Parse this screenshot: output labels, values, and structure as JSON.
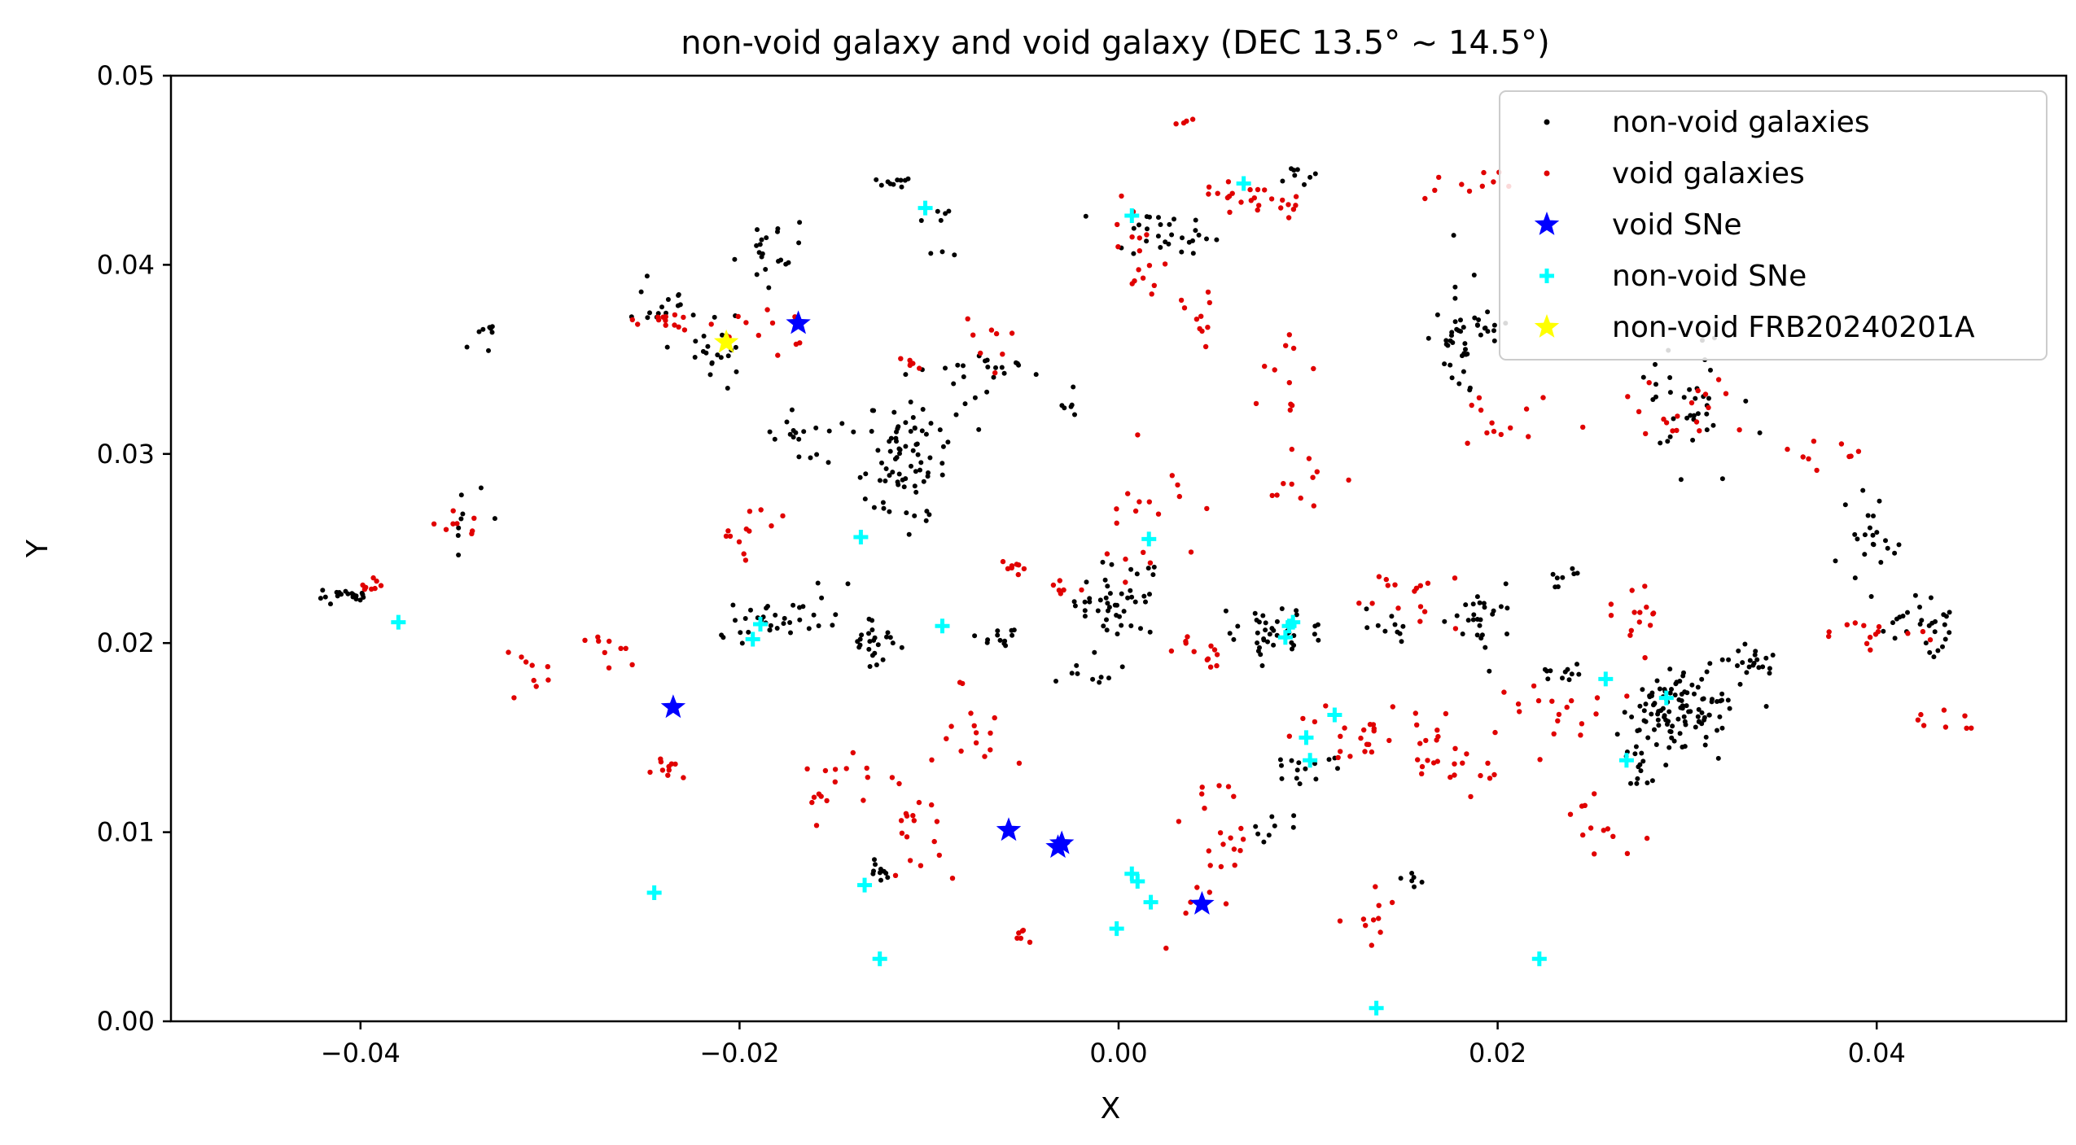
{
  "chart_data": {
    "type": "scatter",
    "title": "non-void galaxy and void galaxy (DEC 13.5° ~ 14.5°)",
    "xlabel": "X",
    "ylabel": "Y",
    "xlim": [
      -0.05,
      0.05
    ],
    "ylim": [
      0.0,
      0.05
    ],
    "xticks": [
      -0.04,
      -0.02,
      0.0,
      0.02,
      0.04
    ],
    "xtick_labels": [
      "−0.04",
      "−0.02",
      "0.00",
      "0.02",
      "0.04"
    ],
    "yticks": [
      0.0,
      0.01,
      0.02,
      0.03,
      0.04,
      0.05
    ],
    "ytick_labels": [
      "0.00",
      "0.01",
      "0.02",
      "0.03",
      "0.04",
      "0.05"
    ],
    "grid": false,
    "legend": {
      "placement": "top-right",
      "entries": [
        {
          "label": "non-void galaxies",
          "series": "nonvoid"
        },
        {
          "label": "void galaxies",
          "series": "void"
        },
        {
          "label": "void SNe",
          "series": "void_sne"
        },
        {
          "label": "non-void SNe",
          "series": "nonvoid_sne"
        },
        {
          "label": "non-void FRB20240201A",
          "series": "frb"
        }
      ]
    },
    "colors": {
      "nonvoid": "#000000",
      "void": "#e00000",
      "void_sne": "#0000ff",
      "nonvoid_sne": "#00ffff",
      "frb": "#ffff00"
    },
    "series": {
      "void_sne": {
        "name": "void SNe",
        "points": [
          [
            -0.0169,
            0.0369
          ],
          [
            -0.0235,
            0.0166
          ],
          [
            -0.0058,
            0.0101
          ],
          [
            -0.0032,
            0.0092
          ],
          [
            -0.003,
            0.0094
          ],
          [
            0.0044,
            0.0062
          ]
        ]
      },
      "nonvoid_sne": {
        "name": "non-void SNe",
        "points": [
          [
            -0.0102,
            0.043
          ],
          [
            0.0007,
            0.0426
          ],
          [
            0.0066,
            0.0443
          ],
          [
            -0.038,
            0.0211
          ],
          [
            -0.0193,
            0.0202
          ],
          [
            -0.0189,
            0.021
          ],
          [
            -0.0136,
            0.0256
          ],
          [
            -0.0093,
            0.0209
          ],
          [
            0.0016,
            0.0255
          ],
          [
            0.0088,
            0.0203
          ],
          [
            0.009,
            0.0209
          ],
          [
            0.0092,
            0.0211
          ],
          [
            0.0099,
            0.015
          ],
          [
            0.0101,
            0.0138
          ],
          [
            0.0114,
            0.0162
          ],
          [
            0.0257,
            0.0181
          ],
          [
            0.0268,
            0.0138
          ],
          [
            0.0289,
            0.0171
          ],
          [
            -0.0245,
            0.0068
          ],
          [
            -0.0134,
            0.0072
          ],
          [
            -0.0126,
            0.0033
          ],
          [
            -0.0001,
            0.0049
          ],
          [
            0.0007,
            0.0078
          ],
          [
            0.001,
            0.0074
          ],
          [
            0.0017,
            0.0063
          ],
          [
            0.0136,
            0.0007
          ],
          [
            0.0222,
            0.0033
          ]
        ]
      },
      "frb": {
        "name": "non-void FRB20240201A",
        "points": [
          [
            -0.0207,
            0.0359
          ]
        ]
      },
      "nonvoid_clusters": [
        [
          -0.041,
          0.0226,
          0.0012,
          0.0006,
          22
        ],
        [
          -0.0345,
          0.0265,
          0.0008,
          0.0018,
          8
        ],
        [
          -0.034,
          0.0365,
          0.0012,
          0.0008,
          8
        ],
        [
          -0.024,
          0.0378,
          0.0012,
          0.0008,
          14
        ],
        [
          -0.0213,
          0.0355,
          0.0012,
          0.0018,
          22
        ],
        [
          -0.0185,
          0.0405,
          0.0015,
          0.0015,
          20
        ],
        [
          -0.0125,
          0.0445,
          0.0018,
          0.0004,
          10
        ],
        [
          -0.0095,
          0.0415,
          0.0008,
          0.0015,
          8
        ],
        [
          -0.0115,
          0.0293,
          0.0022,
          0.003,
          75
        ],
        [
          -0.0165,
          0.0307,
          0.0018,
          0.0012,
          18
        ],
        [
          -0.0175,
          0.0214,
          0.0035,
          0.0012,
          38
        ],
        [
          -0.0125,
          0.02,
          0.0012,
          0.0008,
          22
        ],
        [
          -0.0065,
          0.0205,
          0.0012,
          0.0005,
          12
        ],
        [
          -0.0075,
          0.0345,
          0.0028,
          0.0012,
          22
        ],
        [
          -0.0025,
          0.0325,
          0.0012,
          0.0005,
          6
        ],
        [
          -0.0003,
          0.0225,
          0.0018,
          0.002,
          45
        ],
        [
          0.003,
          0.0415,
          0.0028,
          0.0012,
          28
        ],
        [
          -0.002,
          0.0185,
          0.0018,
          0.0006,
          10
        ],
        [
          0.008,
          0.0205,
          0.0022,
          0.0012,
          40
        ],
        [
          0.01,
          0.0135,
          0.0015,
          0.0006,
          14
        ],
        [
          0.0145,
          0.0208,
          0.0018,
          0.0006,
          10
        ],
        [
          0.0185,
          0.036,
          0.0015,
          0.0025,
          45
        ],
        [
          0.019,
          0.0215,
          0.0015,
          0.0012,
          25
        ],
        [
          0.0235,
          0.0235,
          0.0008,
          0.0005,
          8
        ],
        [
          0.0225,
          0.0185,
          0.0018,
          0.0004,
          12
        ],
        [
          0.0295,
          0.0165,
          0.0022,
          0.0018,
          110
        ],
        [
          0.0335,
          0.019,
          0.0015,
          0.0008,
          22
        ],
        [
          0.0275,
          0.0132,
          0.0008,
          0.0012,
          12
        ],
        [
          0.0305,
          0.0325,
          0.0028,
          0.0028,
          36
        ],
        [
          0.0395,
          0.0255,
          0.0015,
          0.0025,
          22
        ],
        [
          0.0425,
          0.021,
          0.0018,
          0.0012,
          28
        ],
        [
          -0.0125,
          0.008,
          0.0008,
          0.0006,
          10
        ],
        [
          0.0155,
          0.0075,
          0.0008,
          0.0006,
          6
        ],
        [
          0.0075,
          0.0105,
          0.0012,
          0.0008,
          8
        ],
        [
          0.0095,
          0.0445,
          0.0008,
          0.0005,
          8
        ]
      ],
      "void_clusters": [
        [
          -0.0395,
          0.023,
          0.001,
          0.0004,
          8
        ],
        [
          -0.035,
          0.0265,
          0.0012,
          0.0015,
          8
        ],
        [
          -0.031,
          0.0185,
          0.0018,
          0.0012,
          10
        ],
        [
          -0.0265,
          0.0195,
          0.0015,
          0.0008,
          8
        ],
        [
          -0.024,
          0.0135,
          0.0008,
          0.0008,
          10
        ],
        [
          -0.0235,
          0.037,
          0.0015,
          0.0006,
          14
        ],
        [
          -0.0185,
          0.0365,
          0.0018,
          0.0012,
          10
        ],
        [
          -0.0195,
          0.026,
          0.0015,
          0.003,
          12
        ],
        [
          -0.015,
          0.0125,
          0.0015,
          0.0025,
          14
        ],
        [
          -0.011,
          0.0105,
          0.0022,
          0.0025,
          20
        ],
        [
          -0.0075,
          0.0155,
          0.0015,
          0.0025,
          14
        ],
        [
          -0.0065,
          0.0365,
          0.0012,
          0.0015,
          8
        ],
        [
          -0.0055,
          0.024,
          0.0008,
          0.0005,
          8
        ],
        [
          -0.003,
          0.023,
          0.0008,
          0.0005,
          6
        ],
        [
          0.001,
          0.0405,
          0.0015,
          0.0028,
          16
        ],
        [
          0.0045,
          0.0375,
          0.0012,
          0.0015,
          10
        ],
        [
          0.007,
          0.0435,
          0.0028,
          0.0015,
          24
        ],
        [
          0.0015,
          0.0265,
          0.0028,
          0.0025,
          18
        ],
        [
          0.0045,
          0.0195,
          0.0015,
          0.0008,
          12
        ],
        [
          0.005,
          0.0085,
          0.002,
          0.0035,
          24
        ],
        [
          0.0085,
          0.0345,
          0.0012,
          0.0035,
          12
        ],
        [
          0.0135,
          0.0155,
          0.0035,
          0.0015,
          30
        ],
        [
          0.0175,
          0.0135,
          0.0028,
          0.001,
          18
        ],
        [
          0.0155,
          0.0225,
          0.0025,
          0.0015,
          16
        ],
        [
          0.0185,
          0.0445,
          0.0025,
          0.0012,
          10
        ],
        [
          0.0205,
          0.0315,
          0.0022,
          0.0015,
          12
        ],
        [
          0.0225,
          0.0165,
          0.0025,
          0.0015,
          16
        ],
        [
          0.027,
          0.0215,
          0.0028,
          0.0015,
          14
        ],
        [
          0.0255,
          0.0105,
          0.0015,
          0.0015,
          12
        ],
        [
          0.0285,
          0.0325,
          0.0028,
          0.0012,
          18
        ],
        [
          0.0365,
          0.0305,
          0.0022,
          0.0012,
          10
        ],
        [
          0.0395,
          0.0205,
          0.0025,
          0.0008,
          14
        ],
        [
          0.0435,
          0.016,
          0.0015,
          0.0006,
          8
        ],
        [
          -0.005,
          0.0045,
          0.0005,
          0.0003,
          6
        ],
        [
          0.013,
          0.0055,
          0.0015,
          0.0015,
          10
        ],
        [
          -0.011,
          0.0345,
          0.0008,
          0.0008,
          6
        ],
        [
          0.0095,
          0.0285,
          0.0018,
          0.0012,
          10
        ],
        [
          0.0035,
          0.0475,
          0.0005,
          0.0003,
          4
        ]
      ]
    }
  }
}
